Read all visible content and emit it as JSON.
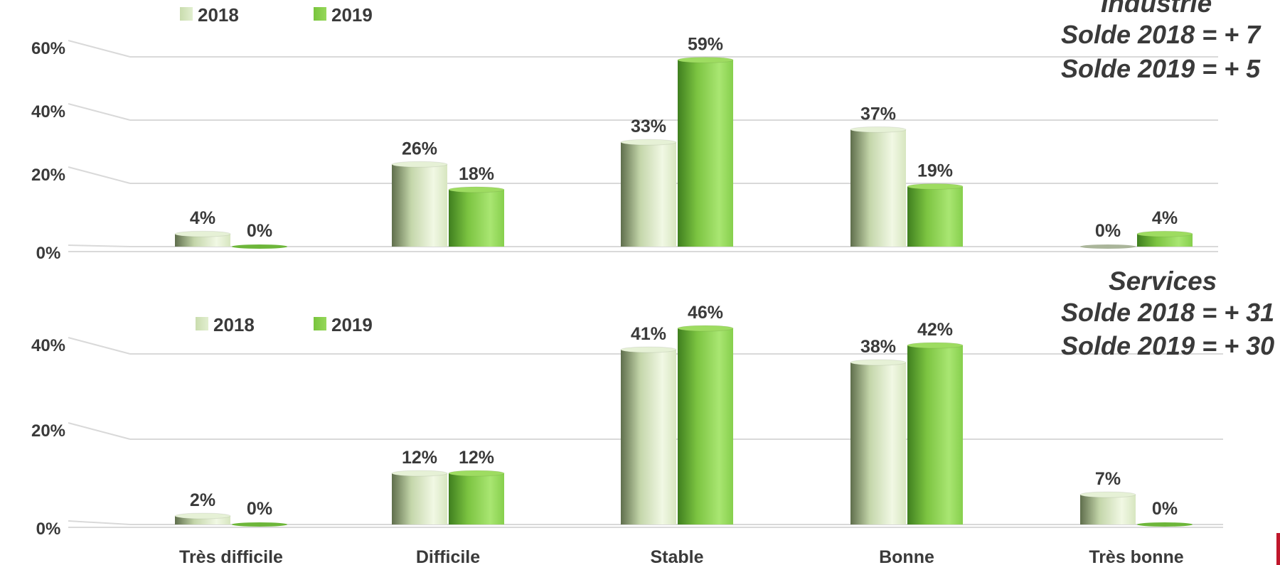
{
  "chart_data": [
    {
      "type": "bar",
      "title": "Industrie",
      "categories": [
        "Très difficile",
        "Difficile",
        "Stable",
        "Bonne",
        "Très bonne"
      ],
      "series": [
        {
          "name": "2018",
          "values": [
            4,
            26,
            33,
            37,
            0
          ]
        },
        {
          "name": "2019",
          "values": [
            0,
            18,
            59,
            19,
            4
          ]
        }
      ],
      "value_labels": [
        [
          "4%",
          "26%",
          "33%",
          "37%",
          "0%"
        ],
        [
          "0%",
          "18%",
          "59%",
          "19%",
          "4%"
        ]
      ],
      "y_ticks": [
        "0%",
        "20%",
        "40%",
        "60%"
      ],
      "ylim": [
        0,
        60
      ],
      "annotations": [
        "Solde 2018 = + 7",
        "Solde 2019 = + 5"
      ],
      "grid": true,
      "legend_position": "top-left"
    },
    {
      "type": "bar",
      "title": "Services",
      "categories": [
        "Très difficile",
        "Difficile",
        "Stable",
        "Bonne",
        "Très bonne"
      ],
      "series": [
        {
          "name": "2018",
          "values": [
            2,
            12,
            41,
            38,
            7
          ]
        },
        {
          "name": "2019",
          "values": [
            0,
            12,
            46,
            42,
            0
          ]
        }
      ],
      "value_labels": [
        [
          "2%",
          "12%",
          "41%",
          "38%",
          "7%"
        ],
        [
          "0%",
          "12%",
          "46%",
          "42%",
          "0%"
        ]
      ],
      "y_ticks": [
        "0%",
        "20%",
        "40%"
      ],
      "ylim": [
        0,
        40
      ],
      "annotations": [
        "Solde 2018 = + 31",
        "Solde 2019 = + 30"
      ],
      "grid": true,
      "legend_position": "top-left"
    }
  ],
  "colors": {
    "series_2018": "#d7e8bf",
    "series_2019": "#8fd14f",
    "label_text": "#3a3a3a",
    "gridline": "#d9d9d9",
    "accent_mark": "#c0172b"
  }
}
